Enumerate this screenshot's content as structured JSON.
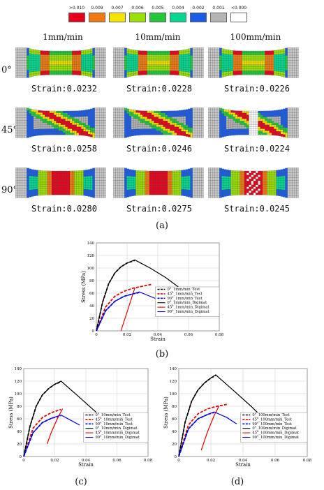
{
  "legend": {
    "labels": [
      ">0.010",
      "0.009",
      "0.007",
      "0.006",
      "0.005",
      "0.004",
      "0.002",
      "0.001",
      "<0.000"
    ],
    "colors": [
      "#e8001c",
      "#f07a10",
      "#f5e400",
      "#9ae000",
      "#22c83a",
      "#00d890",
      "#1a5ce8",
      "#b4b4b4",
      "#ffffff"
    ]
  },
  "columns": [
    "1mm/min",
    "10mm/min",
    "100mm/min"
  ],
  "rows": [
    {
      "label": "0°",
      "strains": [
        "Strain:0.0232",
        "Strain:0.0228",
        "Strain:0.0226"
      ]
    },
    {
      "label": "45°",
      "strains": [
        "Strain:0.0258",
        "Strain:0.0246",
        "Strain:0.0224"
      ]
    },
    {
      "label": "90°",
      "strains": [
        "Strain:0.0280",
        "Strain:0.0275",
        "Strain:0.0245"
      ]
    }
  ],
  "captions": {
    "a": "(a)",
    "b": "(b)",
    "c": "(c)",
    "d": "(d)"
  },
  "chart_data": [
    {
      "type": "line",
      "panel": "(b)",
      "xlabel": "Strain",
      "ylabel": "Stress (MPa)",
      "xlim": [
        0,
        0.08
      ],
      "ylim": [
        0,
        140
      ],
      "xticks": [
        "0",
        "0.02",
        "0.04",
        "0.06",
        "0.08"
      ],
      "yticks": [
        "0",
        "20",
        "40",
        "60",
        "80",
        "100",
        "120",
        "140"
      ],
      "series": [
        {
          "name": "0°_1mm/min_Test",
          "color": "#000000",
          "dash": true,
          "x": [
            0,
            0.004,
            0.008,
            0.012,
            0.016,
            0.02,
            0.025
          ],
          "y": [
            0,
            45,
            75,
            92,
            102,
            108,
            112
          ]
        },
        {
          "name": "45°_1mm/min_Test",
          "color": "#e00000",
          "dash": true,
          "x": [
            0,
            0.006,
            0.012,
            0.018,
            0.024,
            0.03,
            0.036
          ],
          "y": [
            0,
            38,
            55,
            63,
            68,
            71,
            74
          ]
        },
        {
          "name": "90°_1mm/min_Test",
          "color": "#0000e0",
          "dash": true,
          "x": [
            0,
            0.006,
            0.012,
            0.018,
            0.024,
            0.028
          ],
          "y": [
            0,
            32,
            47,
            55,
            59,
            61
          ]
        },
        {
          "name": "0°_1mm/min_Digimat",
          "color": "#000000",
          "dash": false,
          "x": [
            0,
            0.004,
            0.008,
            0.012,
            0.016,
            0.02,
            0.025,
            0.035,
            0.045,
            0.06
          ],
          "y": [
            0,
            45,
            75,
            92,
            102,
            108,
            113,
            100,
            85,
            58
          ]
        },
        {
          "name": "45°_1mm/min_Digimat",
          "color": "#e00000",
          "dash": false,
          "x": [
            0.016,
            0.02,
            0.025
          ],
          "y": [
            0,
            30,
            68
          ]
        },
        {
          "name": "90°_1mm/min_Digimat",
          "color": "#0000e0",
          "dash": false,
          "x": [
            0,
            0.006,
            0.012,
            0.018,
            0.024,
            0.028,
            0.035,
            0.042
          ],
          "y": [
            0,
            32,
            47,
            55,
            59,
            62,
            55,
            48
          ]
        }
      ]
    },
    {
      "type": "line",
      "panel": "(c)",
      "xlabel": "Strain",
      "ylabel": "Stress (MPa)",
      "xlim": [
        0,
        0.08
      ],
      "ylim": [
        0,
        140
      ],
      "xticks": [
        "0",
        "0.02",
        "0.04",
        "0.06",
        "0.08"
      ],
      "yticks": [
        "0",
        "20",
        "40",
        "60",
        "80",
        "100",
        "120",
        "140"
      ],
      "series": [
        {
          "name": "0°_10mm/min_Test",
          "color": "#000000",
          "dash": true,
          "x": [
            0,
            0.004,
            0.008,
            0.012,
            0.016,
            0.02,
            0.024
          ],
          "y": [
            0,
            48,
            80,
            98,
            108,
            115,
            119
          ]
        },
        {
          "name": "45°_10mm/min_Test",
          "color": "#e00000",
          "dash": true,
          "x": [
            0,
            0.006,
            0.012,
            0.018,
            0.024
          ],
          "y": [
            0,
            45,
            62,
            70,
            75
          ]
        },
        {
          "name": "90°_10mm/min_Test",
          "color": "#0000e0",
          "dash": true,
          "x": [
            0,
            0.006,
            0.012,
            0.018,
            0.024
          ],
          "y": [
            0,
            38,
            54,
            61,
            65
          ]
        },
        {
          "name": "0°_10mm/min_Digimat",
          "color": "#000000",
          "dash": false,
          "x": [
            0,
            0.004,
            0.008,
            0.012,
            0.016,
            0.02,
            0.024,
            0.035,
            0.045,
            0.055
          ],
          "y": [
            0,
            48,
            80,
            98,
            108,
            115,
            120,
            96,
            74,
            52
          ]
        },
        {
          "name": "45°_10mm/min_Digimat",
          "color": "#e00000",
          "dash": false,
          "x": [
            0.015,
            0.018,
            0.022,
            0.025
          ],
          "y": [
            20,
            40,
            62,
            76
          ]
        },
        {
          "name": "90°_10mm/min_Digimat",
          "color": "#0000e0",
          "dash": false,
          "x": [
            0,
            0.006,
            0.012,
            0.018,
            0.024,
            0.03,
            0.036
          ],
          "y": [
            0,
            38,
            54,
            61,
            66,
            58,
            50
          ]
        }
      ]
    },
    {
      "type": "line",
      "panel": "(d)",
      "xlabel": "Strain",
      "ylabel": "Stress (MPa)",
      "xlim": [
        0,
        0.08
      ],
      "ylim": [
        0,
        140
      ],
      "xticks": [
        "0",
        "0.02",
        "0.04",
        "0.06",
        "0.08"
      ],
      "yticks": [
        "0",
        "20",
        "40",
        "60",
        "80",
        "100",
        "120",
        "140"
      ],
      "series": [
        {
          "name": "0°_100mm/min_Test",
          "color": "#000000",
          "dash": true,
          "x": [
            0,
            0.004,
            0.008,
            0.012,
            0.016,
            0.02,
            0.023
          ],
          "y": [
            0,
            55,
            88,
            106,
            117,
            125,
            129
          ]
        },
        {
          "name": "45°_100mm/min_Test",
          "color": "#e00000",
          "dash": true,
          "x": [
            0,
            0.006,
            0.012,
            0.018,
            0.024,
            0.03
          ],
          "y": [
            0,
            50,
            68,
            76,
            80,
            83
          ]
        },
        {
          "name": "90°_100mm/min_Test",
          "color": "#0000e0",
          "dash": true,
          "x": [
            0,
            0.006,
            0.012,
            0.018,
            0.022
          ],
          "y": [
            0,
            44,
            60,
            67,
            70
          ]
        },
        {
          "name": "0°_100mm/min_Digimat",
          "color": "#000000",
          "dash": false,
          "x": [
            0,
            0.004,
            0.008,
            0.012,
            0.016,
            0.02,
            0.023,
            0.035,
            0.045,
            0.055
          ],
          "y": [
            0,
            55,
            88,
            106,
            117,
            125,
            130,
            103,
            80,
            55
          ]
        },
        {
          "name": "45°_100mm/min_Digimat",
          "color": "#e00000",
          "dash": false,
          "x": [
            0.014,
            0.018,
            0.022,
            0.025
          ],
          "y": [
            10,
            40,
            65,
            80
          ]
        },
        {
          "name": "90°_100mm/min_Digimat",
          "color": "#0000e0",
          "dash": false,
          "x": [
            0,
            0.006,
            0.012,
            0.018,
            0.022,
            0.03,
            0.036
          ],
          "y": [
            0,
            44,
            60,
            67,
            71,
            62,
            52
          ]
        }
      ]
    }
  ]
}
